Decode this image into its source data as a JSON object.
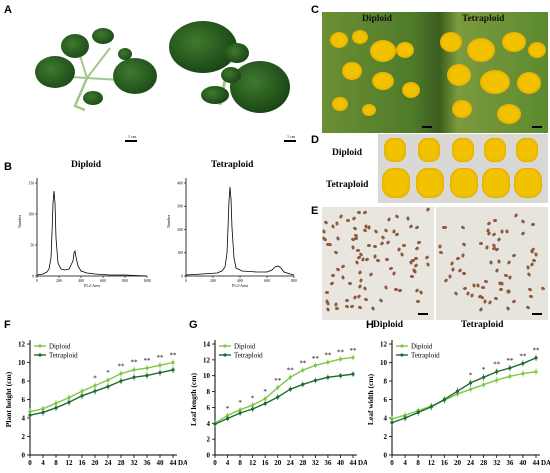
{
  "panels": {
    "A": {
      "letter": "A",
      "scale_left": "1 cm",
      "scale_right": "1 cm"
    },
    "B": {
      "letter": "B",
      "diploid": {
        "title": "Diploid",
        "xlabel": "FL2-Area",
        "ylabel": "Number",
        "xticks": [
          "0",
          "200",
          "400",
          "600",
          "800",
          "1000"
        ],
        "yticks": [
          "0",
          "50",
          "100",
          "150"
        ]
      },
      "tetraploid": {
        "title": "Tetraploid",
        "xlabel": "FL2-Area",
        "ylabel": "Number",
        "xticks": [
          "0",
          "200",
          "400",
          "600",
          "800"
        ],
        "yticks": [
          "0",
          "100",
          "200",
          "300",
          "400"
        ]
      }
    },
    "C": {
      "letter": "C",
      "left_label": "Diploid",
      "right_label": "Tetraploid"
    },
    "D": {
      "letter": "D",
      "row1": "Diploid",
      "row2": "Tetraploid"
    },
    "E": {
      "letter": "E",
      "left_label": "Diploid",
      "right_label": "Tetraploid"
    },
    "F": {
      "letter": "F"
    },
    "G": {
      "letter": "G"
    },
    "H": {
      "letter": "H"
    }
  },
  "colors": {
    "diploid": "#7ec845",
    "tetraploid": "#1d6b33"
  },
  "chart_data": [
    {
      "type": "line",
      "panel": "F",
      "x": [
        0,
        4,
        8,
        12,
        16,
        20,
        24,
        28,
        32,
        36,
        40,
        44
      ],
      "xlabel": "DAP",
      "ylabel": "Plant height (cm)",
      "ylim": [
        0,
        12
      ],
      "yticks": [
        0,
        2,
        4,
        6,
        8,
        10,
        12
      ],
      "series": [
        {
          "name": "Diploid",
          "values": [
            4.7,
            5.0,
            5.6,
            6.2,
            6.9,
            7.5,
            8.1,
            8.8,
            9.2,
            9.4,
            9.7,
            10.0
          ]
        },
        {
          "name": "Tetraploid",
          "values": [
            4.3,
            4.6,
            5.1,
            5.7,
            6.4,
            6.9,
            7.4,
            8.0,
            8.4,
            8.6,
            8.9,
            9.2
          ]
        }
      ],
      "significance": [
        "",
        "",
        "",
        "",
        "",
        "*",
        "*",
        "**",
        "**",
        "**",
        "**",
        "**"
      ],
      "legend": "top-left"
    },
    {
      "type": "line",
      "panel": "G",
      "x": [
        0,
        4,
        8,
        12,
        16,
        20,
        24,
        28,
        32,
        36,
        40,
        44
      ],
      "xlabel": "DAP",
      "ylabel": "Leaf length (cm)",
      "ylim": [
        0,
        14
      ],
      "yticks": [
        0,
        2,
        4,
        6,
        8,
        10,
        12,
        14
      ],
      "series": [
        {
          "name": "Diploid",
          "values": [
            4.0,
            5.0,
            5.7,
            6.3,
            7.1,
            8.5,
            9.8,
            10.7,
            11.3,
            11.7,
            12.1,
            12.3
          ]
        },
        {
          "name": "Tetraploid",
          "values": [
            3.9,
            4.6,
            5.3,
            5.8,
            6.5,
            7.3,
            8.3,
            8.9,
            9.4,
            9.8,
            10.0,
            10.2
          ]
        }
      ],
      "significance": [
        "",
        "*",
        "*",
        "*",
        "*",
        "**",
        "**",
        "**",
        "**",
        "**",
        "**",
        "**"
      ],
      "legend": "top-left"
    },
    {
      "type": "line",
      "panel": "H",
      "x": [
        0,
        4,
        8,
        12,
        16,
        20,
        24,
        28,
        32,
        36,
        40,
        44
      ],
      "xlabel": "DAP",
      "ylabel": "Leaf width (cm)",
      "ylim": [
        0,
        12
      ],
      "yticks": [
        0,
        2,
        4,
        6,
        8,
        10,
        12
      ],
      "series": [
        {
          "name": "Diploid",
          "values": [
            3.9,
            4.3,
            4.8,
            5.3,
            5.9,
            6.6,
            7.1,
            7.6,
            8.1,
            8.5,
            8.8,
            9.0
          ]
        },
        {
          "name": "Tetraploid",
          "values": [
            3.5,
            4.0,
            4.6,
            5.2,
            6.0,
            6.9,
            7.8,
            8.4,
            9.0,
            9.4,
            9.9,
            10.5
          ]
        }
      ],
      "significance": [
        "",
        "",
        "",
        "",
        "",
        "",
        "*",
        "*",
        "**",
        "**",
        "**",
        "**"
      ],
      "legend": "top-left"
    }
  ]
}
